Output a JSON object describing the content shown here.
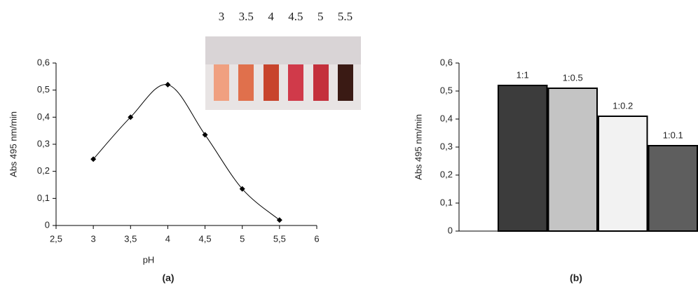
{
  "chart_data": [
    {
      "type": "line",
      "caption": "(a)",
      "xlabel": "pH",
      "ylabel": "Abs 495 nm/min",
      "photo_labels": [
        "3",
        "3.5",
        "4",
        "4.5",
        "5",
        "5.5"
      ],
      "x": [
        3,
        3.5,
        4,
        4.5,
        5,
        5.5
      ],
      "values": [
        0.245,
        0.4,
        0.52,
        0.335,
        0.135,
        0.02
      ],
      "color": "#000000",
      "xlim": [
        2.5,
        6
      ],
      "xticks": [
        {
          "value": 2.5,
          "label": "2,5"
        },
        3,
        {
          "value": 3.5,
          "label": "3,5"
        },
        4,
        {
          "value": 4.5,
          "label": "4,5"
        },
        5,
        {
          "value": 5.5,
          "label": "5,5"
        },
        6
      ],
      "ylim": [
        0,
        0.6
      ],
      "yticks": [
        0,
        {
          "value": 0.1,
          "label": "0,1"
        },
        {
          "value": 0.2,
          "label": "0,2"
        },
        {
          "value": 0.3,
          "label": "0,3"
        },
        {
          "value": 0.4,
          "label": "0,4"
        },
        {
          "value": 0.5,
          "label": "0,5"
        },
        {
          "value": 0.6,
          "label": "0,6"
        }
      ]
    },
    {
      "type": "bar",
      "caption": "(b)",
      "ylabel": "Abs 495 nm/min",
      "categories": [
        "1:1",
        "1:0.5",
        "1:0.2",
        "1:0.1"
      ],
      "values": [
        0.52,
        0.51,
        0.41,
        0.305
      ],
      "colors": [
        "#3c3c3c",
        "#c4c4c4",
        "#f2f2f2",
        "#5e5e5e"
      ],
      "ylim": [
        0,
        0.6
      ],
      "yticks": [
        0,
        {
          "value": 0.1,
          "label": "0,1"
        },
        {
          "value": 0.2,
          "label": "0,2"
        },
        {
          "value": 0.3,
          "label": "0,3"
        },
        {
          "value": 0.4,
          "label": "0,4"
        },
        {
          "value": 0.5,
          "label": "0,5"
        },
        {
          "value": 0.6,
          "label": "0,6"
        }
      ]
    }
  ]
}
